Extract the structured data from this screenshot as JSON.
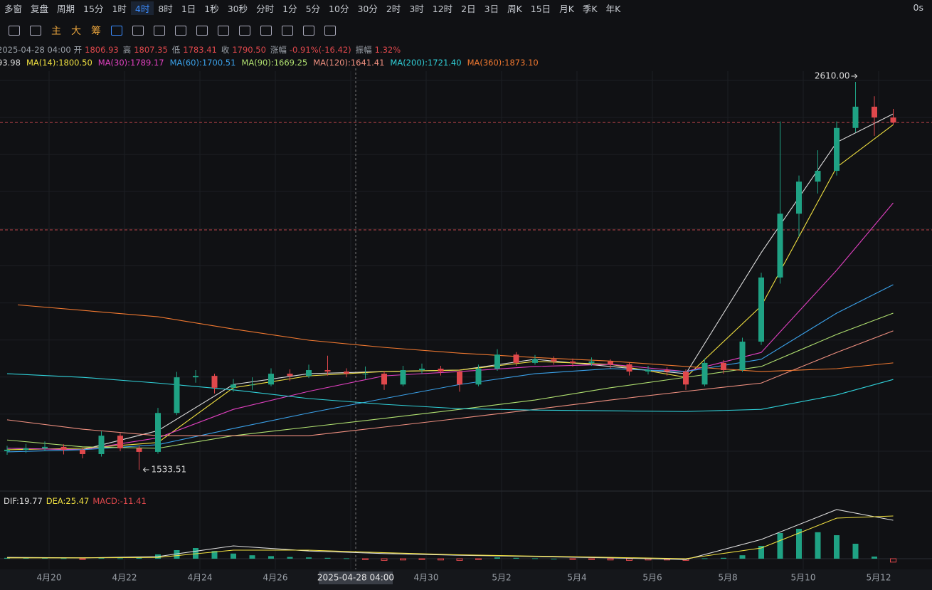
{
  "toolbar": {
    "left": [
      "多窗",
      "复盘",
      "周期"
    ],
    "periods": [
      "15分",
      "1时",
      "4时",
      "8时",
      "1日",
      "1秒",
      "30秒",
      "分时",
      "1分",
      "5分",
      "10分",
      "30分",
      "2时",
      "3时",
      "12时",
      "2日",
      "3日",
      "周K",
      "15日",
      "月K",
      "季K",
      "年K"
    ],
    "active": "4时",
    "right": "0s"
  },
  "icon_bar": {
    "labels": [
      "主",
      "大",
      "筹"
    ]
  },
  "chart_data": {
    "type": "candlestick",
    "info": {
      "time": "2025-04-28 04:00",
      "fields": [
        {
          "label": "开",
          "value": "1806.93"
        },
        {
          "label": "高",
          "value": "1807.35"
        },
        {
          "label": "低",
          "value": "1783.41"
        },
        {
          "label": "收",
          "value": "1790.50"
        },
        {
          "label": "涨幅",
          "value": "-0.91%(-16.42)"
        },
        {
          "label": "振幅",
          "value": "1.32%"
        }
      ]
    },
    "candles": [
      [
        1585,
        1600,
        1575,
        1589
      ],
      [
        1589,
        1605,
        1580,
        1593
      ],
      [
        1593,
        1612,
        1585,
        1597
      ],
      [
        1597,
        1604,
        1576,
        1589
      ],
      [
        1589,
        1595,
        1565,
        1577
      ],
      [
        1577,
        1640,
        1570,
        1628
      ],
      [
        1628,
        1635,
        1585,
        1593
      ],
      [
        1593,
        1600,
        1533.51,
        1583
      ],
      [
        1583,
        1705,
        1578,
        1691
      ],
      [
        1691,
        1805,
        1685,
        1790
      ],
      [
        1790,
        1810,
        1775,
        1794
      ],
      [
        1794,
        1800,
        1745,
        1761
      ],
      [
        1761,
        1785,
        1750,
        1770
      ],
      [
        1770,
        1790,
        1755,
        1770
      ],
      [
        1770,
        1815,
        1765,
        1800
      ],
      [
        1800,
        1812,
        1780,
        1794
      ],
      [
        1794,
        1825,
        1788,
        1810
      ],
      [
        1810,
        1850,
        1795,
        1806
      ],
      [
        1806,
        1815,
        1790,
        1800
      ],
      [
        1800,
        1820,
        1785,
        1800
      ],
      [
        1800,
        1808,
        1755,
        1770
      ],
      [
        1770,
        1822,
        1765,
        1810
      ],
      [
        1810,
        1828,
        1800,
        1814
      ],
      [
        1814,
        1822,
        1795,
        1806
      ],
      [
        1806,
        1812,
        1750,
        1770
      ],
      [
        1770,
        1825,
        1765,
        1814
      ],
      [
        1814,
        1868,
        1808,
        1853
      ],
      [
        1853,
        1860,
        1822,
        1830
      ],
      [
        1830,
        1852,
        1825,
        1840
      ],
      [
        1840,
        1848,
        1825,
        1834
      ],
      [
        1834,
        1842,
        1820,
        1830
      ],
      [
        1830,
        1845,
        1822,
        1834
      ],
      [
        1834,
        1840,
        1815,
        1826
      ],
      [
        1826,
        1832,
        1795,
        1806
      ],
      [
        1806,
        1822,
        1798,
        1810
      ],
      [
        1810,
        1818,
        1795,
        1806
      ],
      [
        1806,
        1812,
        1755,
        1770
      ],
      [
        1770,
        1842,
        1765,
        1830
      ],
      [
        1830,
        1838,
        1800,
        1810
      ],
      [
        1810,
        1900,
        1805,
        1889
      ],
      [
        1889,
        2080,
        1880,
        2067
      ],
      [
        2067,
        2500,
        2050,
        2244
      ],
      [
        2244,
        2350,
        2180,
        2333
      ],
      [
        2333,
        2420,
        2300,
        2363
      ],
      [
        2363,
        2500,
        2350,
        2482
      ],
      [
        2482,
        2610,
        2470,
        2541
      ],
      [
        2541,
        2570,
        2460,
        2511
      ],
      [
        2511,
        2535,
        2490,
        2497
      ]
    ],
    "ma_x": [
      0,
      4,
      8,
      12,
      16,
      20,
      24,
      28,
      32,
      36,
      40,
      44,
      47
    ],
    "ma_series": [
      {
        "label": "93.98",
        "color": "#dddddd",
        "values": [
          1593,
          1589,
          1642,
          1770,
          1800,
          1806,
          1810,
          1840,
          1820,
          1800,
          2136,
          2442,
          2521
        ]
      },
      {
        "label": "MA(14):1800.50",
        "color": "#f0e040",
        "values": [
          1589,
          1593,
          1609,
          1761,
          1794,
          1806,
          1810,
          1834,
          1826,
          1790,
          1988,
          2373,
          2491
        ]
      },
      {
        "label": "MA(30):1789.17",
        "color": "#e040c0",
        "values": [
          1593,
          1589,
          1622,
          1701,
          1751,
          1794,
          1806,
          1820,
          1826,
          1806,
          1859,
          2087,
          2274
        ]
      },
      {
        "label": "MA(60):1700.51",
        "color": "#3aa0e8",
        "values": [
          1583,
          1589,
          1603,
          1648,
          1691,
          1731,
          1770,
          1800,
          1814,
          1806,
          1840,
          1968,
          2047
        ]
      },
      {
        "label": "MA(90):1669.25",
        "color": "#b0e070",
        "values": [
          1616,
          1597,
          1593,
          1628,
          1652,
          1676,
          1701,
          1727,
          1761,
          1790,
          1820,
          1909,
          1968
        ]
      },
      {
        "label": "MA(120):1641.41",
        "color": "#f09080",
        "values": [
          1672,
          1646,
          1628,
          1628,
          1628,
          1652,
          1676,
          1701,
          1727,
          1751,
          1774,
          1859,
          1919
        ]
      },
      {
        "label": "MA(200):1721.40",
        "color": "#30d0d8",
        "values": [
          1800,
          1790,
          1774,
          1755,
          1731,
          1715,
          1703,
          1699,
          1697,
          1695,
          1701,
          1741,
          1784
        ]
      },
      {
        "label": "MA(360):1873.10",
        "color": "#f07830",
        "values": [
          null,
          1991,
          1958,
          1924,
          1893,
          1873,
          1857,
          1845,
          1835,
          1820,
          1806,
          1814,
          1830
        ]
      }
    ],
    "price_lines": [
      2497,
      2199
    ],
    "high_label": "2610.00",
    "low_label": "1533.51",
    "categories": [
      "4月20",
      "4月22",
      "4月24",
      "4月26",
      null,
      "4月30",
      "5月2",
      "5月4",
      "5月6",
      "5月8",
      "5月10",
      "5月12"
    ],
    "crosshair": "2025-04-28 04:00",
    "macd": {
      "legend": [
        {
          "label": "DIF:19.77",
          "color": "#dddddd"
        },
        {
          "label": "DEA:25.47",
          "color": "#f0e040"
        },
        {
          "label": "MACD:-11.41",
          "color": "#e0484c"
        }
      ],
      "hist": [
        2,
        3,
        2,
        1,
        -2,
        3,
        1,
        2,
        10,
        20,
        25,
        18,
        12,
        8,
        6,
        4,
        3,
        2,
        1,
        -2,
        -4,
        -3,
        -2,
        -3,
        -4,
        -2,
        3,
        2,
        1,
        0,
        -1,
        -2,
        -3,
        -4,
        -3,
        -3,
        -4,
        1,
        2,
        8,
        30,
        60,
        70,
        62,
        55,
        35,
        5,
        -8
      ],
      "dif": [
        3,
        2,
        5,
        30,
        18,
        12,
        8,
        5,
        2,
        -2,
        45,
        115,
        90
      ],
      "dea": [
        2,
        2,
        3,
        20,
        20,
        14,
        9,
        6,
        3,
        0,
        25,
        95,
        100
      ]
    }
  }
}
